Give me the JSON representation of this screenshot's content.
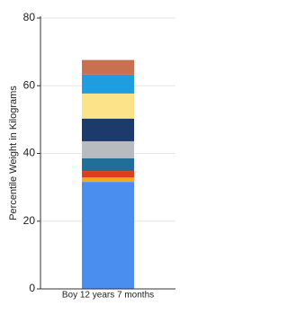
{
  "chart_data": {
    "type": "stacked-bar",
    "y_label": "Percentile Weight in Kilograms",
    "categories": [
      "Boy 12 years 7 months"
    ],
    "series": [
      {
        "color": "#4a8ef0",
        "values": [
          31.6
        ]
      },
      {
        "color": "#f5a623",
        "values": [
          1.3
        ]
      },
      {
        "color": "#d9411e",
        "values": [
          1.9
        ]
      },
      {
        "color": "#1f6f96",
        "values": [
          3.8
        ]
      },
      {
        "color": "#b8bcc0",
        "values": [
          5.0
        ]
      },
      {
        "color": "#1c3a6b",
        "values": [
          6.7
        ]
      },
      {
        "color": "#fce38a",
        "values": [
          7.4
        ]
      },
      {
        "color": "#1e9ee0",
        "values": [
          5.6
        ]
      },
      {
        "color": "#c87050",
        "values": [
          4.3
        ]
      }
    ],
    "ylim": [
      0,
      80
    ],
    "yticks": [
      0,
      20,
      40,
      60,
      80
    ],
    "grid": true
  }
}
